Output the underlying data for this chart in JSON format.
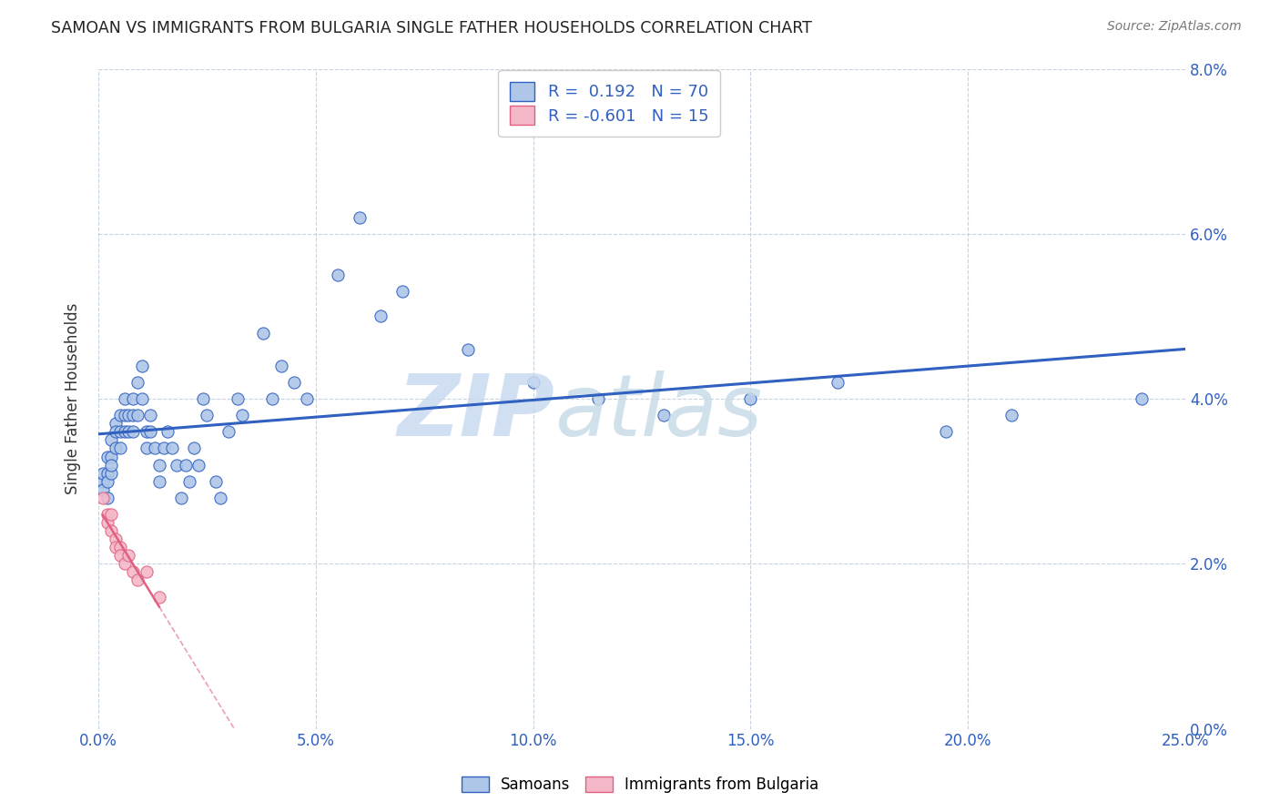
{
  "title": "SAMOAN VS IMMIGRANTS FROM BULGARIA SINGLE FATHER HOUSEHOLDS CORRELATION CHART",
  "source": "Source: ZipAtlas.com",
  "xlabel_ticks": [
    "0.0%",
    "5.0%",
    "10.0%",
    "15.0%",
    "20.0%",
    "25.0%"
  ],
  "ylabel_ticks": [
    "0.0%",
    "2.0%",
    "4.0%",
    "6.0%",
    "8.0%"
  ],
  "ylabel_label": "Single Father Households",
  "xlim": [
    0.0,
    0.25
  ],
  "ylim": [
    0.0,
    0.08
  ],
  "blue_r": 0.192,
  "blue_n": 70,
  "pink_r": -0.601,
  "pink_n": 15,
  "blue_color": "#aec6e8",
  "pink_color": "#f4b8c8",
  "blue_line_color": "#3060c0",
  "pink_line_color": "#e06080",
  "blue_scatter_x": [
    0.001,
    0.001,
    0.001,
    0.002,
    0.002,
    0.002,
    0.002,
    0.003,
    0.003,
    0.003,
    0.003,
    0.004,
    0.004,
    0.004,
    0.005,
    0.005,
    0.005,
    0.006,
    0.006,
    0.006,
    0.007,
    0.007,
    0.008,
    0.008,
    0.008,
    0.009,
    0.009,
    0.01,
    0.01,
    0.011,
    0.011,
    0.012,
    0.012,
    0.013,
    0.014,
    0.014,
    0.015,
    0.016,
    0.017,
    0.018,
    0.019,
    0.02,
    0.021,
    0.022,
    0.023,
    0.024,
    0.025,
    0.027,
    0.028,
    0.03,
    0.032,
    0.033,
    0.038,
    0.04,
    0.042,
    0.045,
    0.048,
    0.055,
    0.06,
    0.065,
    0.07,
    0.085,
    0.1,
    0.115,
    0.13,
    0.15,
    0.17,
    0.195,
    0.21,
    0.24
  ],
  "blue_scatter_y": [
    0.03,
    0.031,
    0.029,
    0.033,
    0.031,
    0.03,
    0.028,
    0.035,
    0.033,
    0.031,
    0.032,
    0.037,
    0.036,
    0.034,
    0.038,
    0.036,
    0.034,
    0.04,
    0.038,
    0.036,
    0.038,
    0.036,
    0.04,
    0.038,
    0.036,
    0.042,
    0.038,
    0.044,
    0.04,
    0.036,
    0.034,
    0.038,
    0.036,
    0.034,
    0.032,
    0.03,
    0.034,
    0.036,
    0.034,
    0.032,
    0.028,
    0.032,
    0.03,
    0.034,
    0.032,
    0.04,
    0.038,
    0.03,
    0.028,
    0.036,
    0.04,
    0.038,
    0.048,
    0.04,
    0.044,
    0.042,
    0.04,
    0.055,
    0.062,
    0.05,
    0.053,
    0.046,
    0.042,
    0.04,
    0.038,
    0.04,
    0.042,
    0.036,
    0.038,
    0.04
  ],
  "pink_scatter_x": [
    0.001,
    0.002,
    0.002,
    0.003,
    0.003,
    0.004,
    0.004,
    0.005,
    0.005,
    0.006,
    0.007,
    0.008,
    0.009,
    0.011,
    0.014
  ],
  "pink_scatter_y": [
    0.028,
    0.026,
    0.025,
    0.026,
    0.024,
    0.023,
    0.022,
    0.022,
    0.021,
    0.02,
    0.021,
    0.019,
    0.018,
    0.019,
    0.016
  ]
}
